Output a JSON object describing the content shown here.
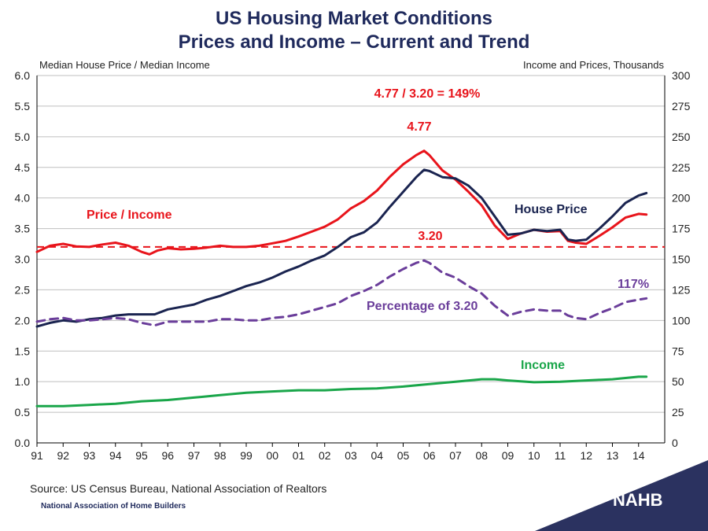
{
  "chart_data": {
    "type": "line",
    "title": "US Housing Market Conditions",
    "subtitle": "Prices and Income – Current and Trend",
    "ylabel_left": "Median House Price / Median Income",
    "ylabel_right": "Income and Prices, Thousands",
    "ylim_left": [
      0,
      6
    ],
    "ylim_right": [
      0,
      300
    ],
    "xlim": [
      1991,
      2015
    ],
    "y_ticks_left": [
      "0.0",
      "0.5",
      "1.0",
      "1.5",
      "2.0",
      "2.5",
      "3.0",
      "3.5",
      "4.0",
      "4.5",
      "5.0",
      "5.5",
      "6.0"
    ],
    "y_ticks_right": [
      "0",
      "25",
      "50",
      "75",
      "100",
      "125",
      "150",
      "175",
      "200",
      "225",
      "250",
      "275",
      "300"
    ],
    "x_ticks": [
      "91",
      "92",
      "93",
      "94",
      "95",
      "96",
      "97",
      "98",
      "99",
      "00",
      "01",
      "02",
      "03",
      "04",
      "05",
      "06",
      "07",
      "08",
      "09",
      "10",
      "11",
      "12",
      "13",
      "14"
    ],
    "grid": true,
    "series": [
      {
        "name": "Price / Income",
        "axis": "left",
        "color": "#e8141b",
        "style": "solid",
        "x": [
          1991,
          1991.5,
          1992,
          1992.5,
          1993,
          1993.5,
          1994,
          1994.5,
          1995,
          1995.3,
          1995.6,
          1996,
          1996.5,
          1997,
          1997.5,
          1998,
          1998.5,
          1999,
          1999.5,
          2000,
          2000.5,
          2001,
          2001.5,
          2002,
          2002.5,
          2003,
          2003.5,
          2004,
          2004.5,
          2005,
          2005.5,
          2005.8,
          2006,
          2006.5,
          2007,
          2007.5,
          2008,
          2008.5,
          2009,
          2009.5,
          2010,
          2010.5,
          2011,
          2011.3,
          2011.6,
          2012,
          2012.5,
          2013,
          2013.5,
          2014,
          2014.3
        ],
        "y": [
          3.12,
          3.22,
          3.25,
          3.21,
          3.2,
          3.24,
          3.27,
          3.22,
          3.12,
          3.08,
          3.14,
          3.18,
          3.16,
          3.17,
          3.19,
          3.22,
          3.2,
          3.2,
          3.22,
          3.26,
          3.3,
          3.37,
          3.45,
          3.53,
          3.65,
          3.83,
          3.95,
          4.12,
          4.35,
          4.55,
          4.7,
          4.77,
          4.7,
          4.45,
          4.3,
          4.1,
          3.88,
          3.55,
          3.33,
          3.42,
          3.48,
          3.45,
          3.46,
          3.3,
          3.27,
          3.25,
          3.38,
          3.52,
          3.68,
          3.74,
          3.73
        ]
      },
      {
        "name": "House Price",
        "axis": "right",
        "color": "#1a2450",
        "style": "solid",
        "x": [
          1991,
          1991.5,
          1992,
          1992.5,
          1993,
          1993.5,
          1994,
          1994.5,
          1995,
          1995.5,
          1996,
          1996.5,
          1997,
          1997.5,
          1998,
          1998.5,
          1999,
          1999.5,
          2000,
          2000.5,
          2001,
          2001.5,
          2002,
          2002.5,
          2003,
          2003.5,
          2004,
          2004.5,
          2005,
          2005.5,
          2005.8,
          2006,
          2006.5,
          2007,
          2007.5,
          2008,
          2008.5,
          2009,
          2009.5,
          2010,
          2010.5,
          2011,
          2011.3,
          2011.6,
          2012,
          2012.5,
          2013,
          2013.5,
          2014,
          2014.3
        ],
        "y": [
          95,
          98,
          100,
          99,
          101,
          102,
          104,
          105,
          105,
          105,
          109,
          111,
          113,
          117,
          120,
          124,
          128,
          131,
          135,
          140,
          144,
          149,
          153,
          160,
          168,
          172,
          180,
          193,
          205,
          217,
          223,
          222,
          217,
          216,
          210,
          200,
          185,
          170,
          171,
          174,
          173,
          174,
          166,
          165,
          166,
          175,
          185,
          196,
          202,
          204
        ]
      },
      {
        "name": "Percentage of 3.20",
        "axis": "right",
        "color": "#6a3d9a",
        "style": "dashed",
        "x": [
          1991,
          1991.5,
          1992,
          1992.5,
          1993,
          1993.5,
          1994,
          1994.5,
          1995,
          1995.5,
          1996,
          1996.5,
          1997,
          1997.5,
          1998,
          1998.5,
          1999,
          1999.5,
          2000,
          2000.5,
          2001,
          2001.5,
          2002,
          2002.5,
          2003,
          2003.5,
          2004,
          2004.5,
          2005,
          2005.5,
          2005.8,
          2006,
          2006.5,
          2007,
          2007.5,
          2008,
          2008.5,
          2009,
          2009.5,
          2010,
          2010.5,
          2011,
          2011.3,
          2011.6,
          2012,
          2012.5,
          2013,
          2013.5,
          2014,
          2014.3
        ],
        "y": [
          99,
          101,
          102,
          100,
          100,
          101,
          102,
          101,
          98,
          96,
          99,
          99,
          99,
          99,
          101,
          101,
          100,
          100,
          102,
          103,
          105,
          108,
          111,
          114,
          120,
          124,
          129,
          136,
          142,
          147,
          149,
          147,
          139,
          135,
          128,
          122,
          112,
          104,
          107,
          109,
          108,
          108,
          104,
          102,
          101,
          106,
          110,
          115,
          117,
          118
        ]
      },
      {
        "name": "Income",
        "axis": "right",
        "color": "#1aa64a",
        "style": "solid",
        "x": [
          1991,
          1992,
          1993,
          1994,
          1995,
          1996,
          1997,
          1998,
          1999,
          2000,
          2001,
          2002,
          2003,
          2004,
          2005,
          2006,
          2007,
          2008,
          2008.5,
          2009,
          2010,
          2011,
          2012,
          2013,
          2014,
          2014.3
        ],
        "y": [
          30,
          30,
          31,
          32,
          34,
          35,
          37,
          39,
          41,
          42,
          43,
          43,
          44,
          44.5,
          46,
          48,
          50,
          52,
          52,
          51,
          49.5,
          50,
          51,
          52,
          54,
          54
        ]
      }
    ],
    "reference_line": {
      "y": 3.2,
      "axis": "left",
      "color": "#e8141b",
      "style": "dashed"
    },
    "annotations": [
      {
        "text": "4.77 / 3.20 = 149%",
        "color": "#e8141b"
      },
      {
        "text": "4.77",
        "color": "#e8141b"
      },
      {
        "text": "3.20",
        "color": "#e8141b"
      },
      {
        "text": "Price / Income",
        "color": "#e8141b"
      },
      {
        "text": "House Price",
        "color": "#1a2450"
      },
      {
        "text": "Percentage of 3.20",
        "color": "#6a3d9a"
      },
      {
        "text": "117%",
        "color": "#6a3d9a"
      },
      {
        "text": "Income",
        "color": "#1aa64a"
      }
    ]
  },
  "source": "Source: US Census Bureau, National Association of Realtors",
  "organization": "National Association of Home Builders",
  "logo_text": "NAHB",
  "colors": {
    "navy": "#1f2a5c",
    "footer": "#2b3260",
    "grid": "#bfbfbf"
  }
}
